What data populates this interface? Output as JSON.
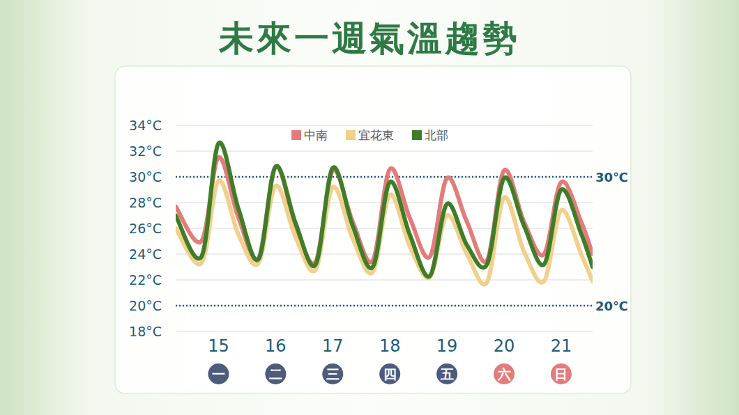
{
  "chart_data": {
    "type": "line",
    "title": "未來一週氣溫趨勢",
    "x": [
      14.25,
      14.7,
      15,
      15.35,
      15.7,
      16,
      16.35,
      16.7,
      17,
      17.35,
      17.7,
      18,
      18.35,
      18.7,
      19,
      19.35,
      19.7,
      20,
      20.35,
      20.7,
      21,
      21.35,
      21.55
    ],
    "series": [
      {
        "name": "中南",
        "color": "#e47b7b",
        "values": [
          27.7,
          25.0,
          31.5,
          26.8,
          23.7,
          30.8,
          26.2,
          23.4,
          30.5,
          26.5,
          23.5,
          30.6,
          26.8,
          23.8,
          29.9,
          26.5,
          23.5,
          30.5,
          26.5,
          24.0,
          29.6,
          26.5,
          24.0
        ]
      },
      {
        "name": "宜花東",
        "color": "#f1d08c",
        "values": [
          26.0,
          23.3,
          29.7,
          25.5,
          23.3,
          29.3,
          25.3,
          22.8,
          29.2,
          25.2,
          22.6,
          28.6,
          24.6,
          22.2,
          27.0,
          24.0,
          21.8,
          28.4,
          24.2,
          21.9,
          27.4,
          24.0,
          21.9
        ]
      },
      {
        "name": "北部",
        "color": "#3f7d28",
        "values": [
          27.0,
          23.8,
          32.6,
          27.5,
          23.6,
          30.8,
          26.4,
          23.2,
          30.7,
          26.2,
          23.0,
          29.6,
          25.5,
          22.3,
          27.9,
          24.7,
          23.2,
          29.9,
          26.2,
          23.2,
          29.0,
          25.6,
          23.0
        ]
      }
    ],
    "xlim": [
      14.25,
      21.55
    ],
    "xticks": [
      15,
      16,
      17,
      18,
      19,
      20,
      21
    ],
    "weekdays": [
      "一",
      "二",
      "三",
      "四",
      "五",
      "六",
      "日"
    ],
    "weekday_colors": [
      "#4d5b7c",
      "#4d5b7c",
      "#4d5b7c",
      "#4d5b7c",
      "#4d5b7c",
      "#e47b7b",
      "#e47b7b"
    ],
    "ylim": [
      18,
      34
    ],
    "yticks": [
      {
        "value": 18,
        "label": "18°C"
      },
      {
        "value": 20,
        "label": "20°C"
      },
      {
        "value": 22,
        "label": "22°C"
      },
      {
        "value": 24,
        "label": "24°C"
      },
      {
        "value": 26,
        "label": "26°C"
      },
      {
        "value": 28,
        "label": "28°C"
      },
      {
        "value": 30,
        "label": "30°C"
      },
      {
        "value": 32,
        "label": "32°C"
      },
      {
        "value": 34,
        "label": "34°C"
      }
    ],
    "reference_lines": [
      {
        "value": 30,
        "label": "30℃"
      },
      {
        "value": 20,
        "label": "20℃"
      }
    ],
    "grid": true,
    "legend": "top"
  }
}
